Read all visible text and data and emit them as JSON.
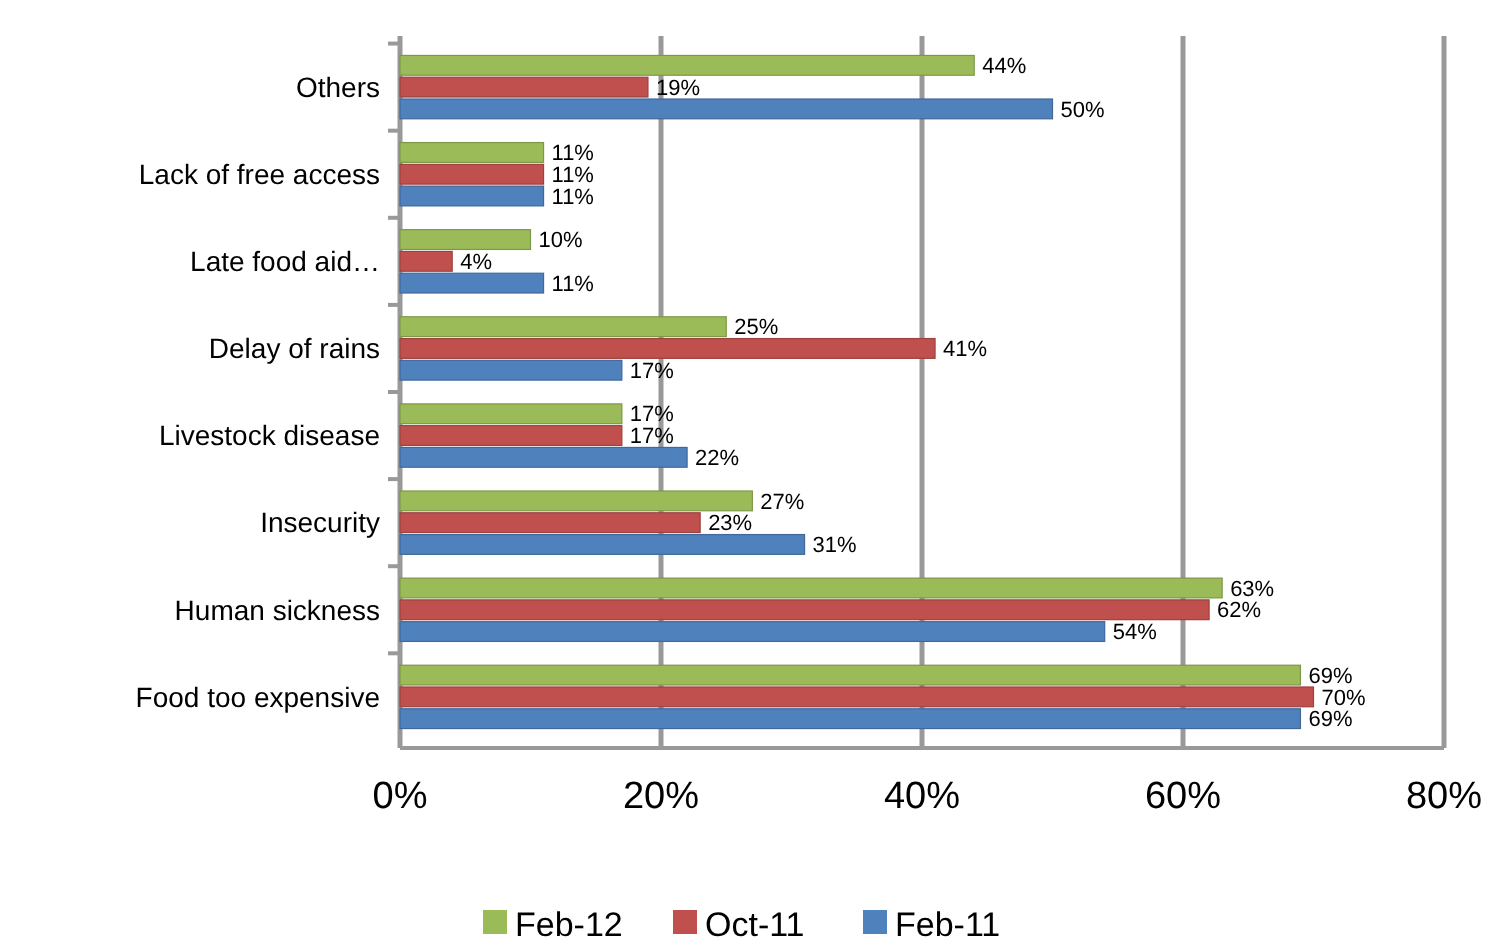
{
  "chart_data": {
    "type": "bar",
    "orientation": "horizontal",
    "categories": [
      "Others",
      "Lack of free access",
      "Late food aid…",
      "Delay of rains",
      "Livestock disease",
      "Insecurity",
      "Human sickness",
      "Food too expensive"
    ],
    "series": [
      {
        "name": "Feb-12",
        "color": "#9bbb59",
        "values": [
          44,
          11,
          10,
          25,
          17,
          27,
          63,
          69
        ],
        "value_labels": [
          "44%",
          "11%",
          "10%",
          "25%",
          "17%",
          "27%",
          "63%",
          "69%"
        ]
      },
      {
        "name": "Oct-11",
        "color": "#c0504d",
        "values": [
          19,
          11,
          4,
          41,
          17,
          23,
          62,
          70
        ],
        "value_labels": [
          "19%",
          "11%",
          "4%",
          "41%",
          "17%",
          "23%",
          "62%",
          "70%"
        ]
      },
      {
        "name": "Feb-11",
        "color": "#4f81bd",
        "values": [
          50,
          11,
          11,
          17,
          22,
          31,
          54,
          69
        ],
        "value_labels": [
          "50%",
          "11%",
          "11%",
          "17%",
          "22%",
          "31%",
          "54%",
          "69%"
        ]
      }
    ],
    "xlim": [
      0,
      80
    ],
    "xticks": [
      {
        "value": 0,
        "label": "0%"
      },
      {
        "value": 20,
        "label": "20%"
      },
      {
        "value": 40,
        "label": "40%"
      },
      {
        "value": 60,
        "label": "60%"
      },
      {
        "value": 80,
        "label": "80%"
      }
    ],
    "grid": "x",
    "legend": "bottom"
  }
}
